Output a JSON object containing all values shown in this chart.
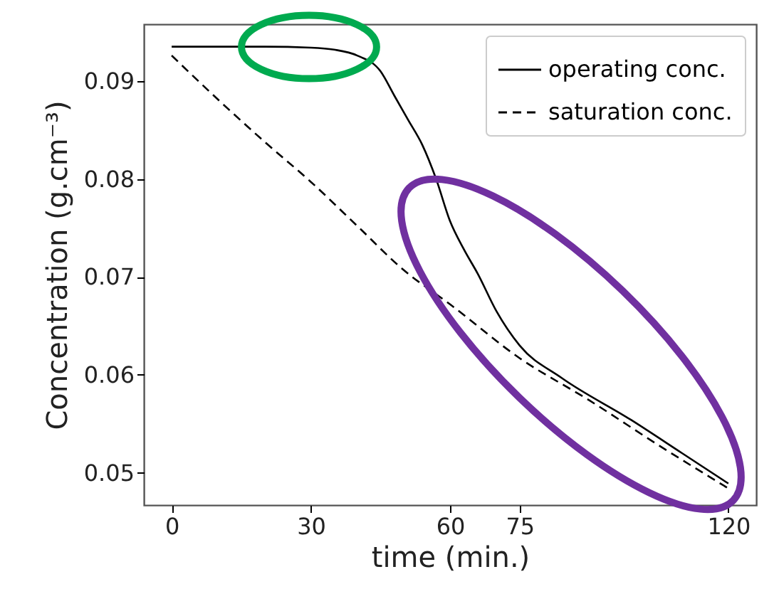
{
  "chart_data": {
    "type": "line",
    "xlabel": "time (min.)",
    "ylabel": "Concentration (g.cm⁻³)",
    "xlim": [
      -6,
      126
    ],
    "ylim": [
      0.0467,
      0.0958
    ],
    "xticks": [
      0,
      30,
      60,
      75,
      120
    ],
    "yticks": [
      0.05,
      0.06,
      0.07,
      0.08,
      0.09
    ],
    "grid": false,
    "legend": "top right",
    "marker": "none",
    "series": [
      {
        "name": "operating conc.",
        "color": "#000000",
        "line_style": "solid",
        "x": [
          0,
          20,
          30,
          35,
          40,
          45,
          48,
          51,
          54,
          57,
          60,
          63,
          66,
          70,
          75,
          84,
          99,
          110,
          120
        ],
        "values": [
          0.0935,
          0.0935,
          0.0934,
          0.0932,
          0.0926,
          0.091,
          0.0885,
          0.086,
          0.0835,
          0.08,
          0.0757,
          0.0728,
          0.0703,
          0.0665,
          0.063,
          0.0597,
          0.0554,
          0.052,
          0.0489
        ]
      },
      {
        "name": "saturation conc.",
        "color": "#000000",
        "line_style": "dashed",
        "x": [
          0,
          10,
          20,
          30,
          40,
          50,
          60,
          75,
          90,
          105,
          120
        ],
        "values": [
          0.0926,
          0.0881,
          0.0838,
          0.0797,
          0.0752,
          0.0707,
          0.0672,
          0.0617,
          0.0574,
          0.0528,
          0.0484
        ]
      }
    ]
  }
}
